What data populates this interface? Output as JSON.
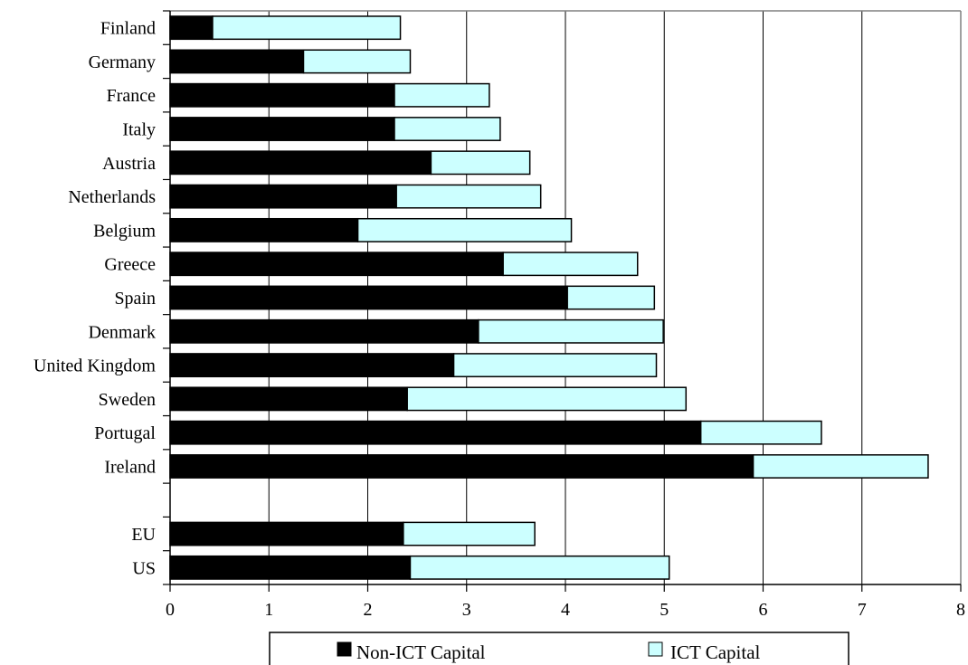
{
  "chart_data": {
    "type": "bar",
    "orientation": "horizontal",
    "stacked": true,
    "categories": [
      "Finland",
      "Germany",
      "France",
      "Italy",
      "Austria",
      "Netherlands",
      "Belgium",
      "Greece",
      "Spain",
      "Denmark",
      "United Kingdom",
      "Sweden",
      "Portugal",
      "Ireland",
      "",
      "EU",
      "US"
    ],
    "series": [
      {
        "name": "Non-ICT Capital",
        "color": "#000000",
        "values": [
          0.43,
          1.35,
          2.27,
          2.27,
          2.64,
          2.29,
          1.9,
          3.37,
          4.02,
          3.12,
          2.87,
          2.4,
          5.37,
          5.9,
          null,
          2.36,
          2.43
        ]
      },
      {
        "name": "ICT Capital",
        "color": "#ccffff",
        "values": [
          1.9,
          1.08,
          0.96,
          1.07,
          1.0,
          1.46,
          2.16,
          1.36,
          0.88,
          1.87,
          2.05,
          2.82,
          1.22,
          1.77,
          null,
          1.33,
          2.62
        ]
      }
    ],
    "xlim": [
      0,
      8
    ],
    "xticks": [
      "0",
      "1",
      "2",
      "3",
      "4",
      "5",
      "6",
      "7",
      "8"
    ],
    "grid": "vertical",
    "legend_position": "bottom"
  }
}
